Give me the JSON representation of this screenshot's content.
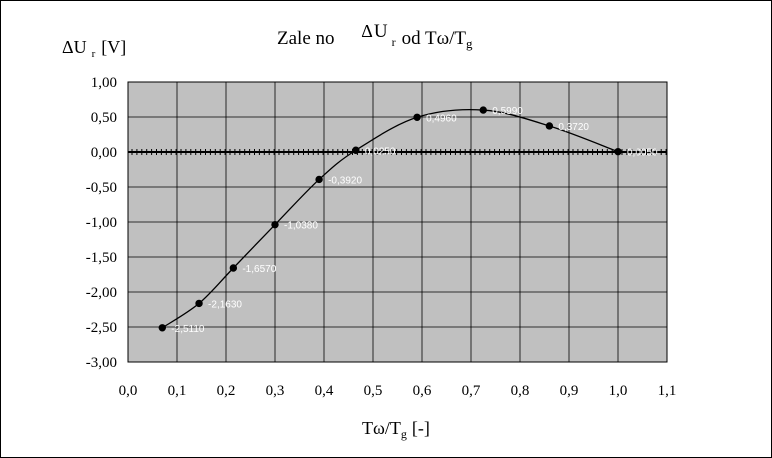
{
  "chart_data": {
    "type": "scatter",
    "title": {
      "prefix": "Zale no",
      "delta": "Δ",
      "main": "U",
      "sub": "r",
      "suffix_a": "od T",
      "omega": "ω",
      "suffix_b": "/T",
      "sub2": "g"
    },
    "ylabel": {
      "delta": "Δ",
      "main": "U",
      "sub": "r",
      "unit": "[V]"
    },
    "xlabel": {
      "t": "T",
      "omega": "ω",
      "slash": "/T",
      "sub": "g",
      "unit": "[-]"
    },
    "xlim": [
      0.0,
      1.1
    ],
    "ylim": [
      -3.0,
      1.0
    ],
    "x_ticks": [
      "0,0",
      "0,1",
      "0,2",
      "0,3",
      "0,4",
      "0,5",
      "0,6",
      "0,7",
      "0,8",
      "0,9",
      "1,0",
      "1,1"
    ],
    "y_ticks": [
      "1,00",
      "0,50",
      "0,00",
      "-0,50",
      "-1,00",
      "-1,50",
      "-2,00",
      "-2,50",
      "-3,00"
    ],
    "grid": true,
    "plot_background": "#c0c0c0",
    "series": [
      {
        "x": [
          0.07,
          0.145,
          0.215,
          0.3,
          0.39,
          0.465,
          0.59,
          0.725,
          0.86,
          1.0
        ],
        "y": [
          -2.511,
          -2.163,
          -1.657,
          -1.038,
          -0.392,
          0.025,
          0.496,
          0.599,
          0.372,
          0.005
        ],
        "labels": [
          "-2,5110",
          "-2,1630",
          "-1,6570",
          "-1,0380",
          "-0,3920",
          "0,0250",
          "0,4960",
          "0,5990",
          "0,3720",
          "0,0050"
        ],
        "color": "#000000"
      }
    ]
  }
}
